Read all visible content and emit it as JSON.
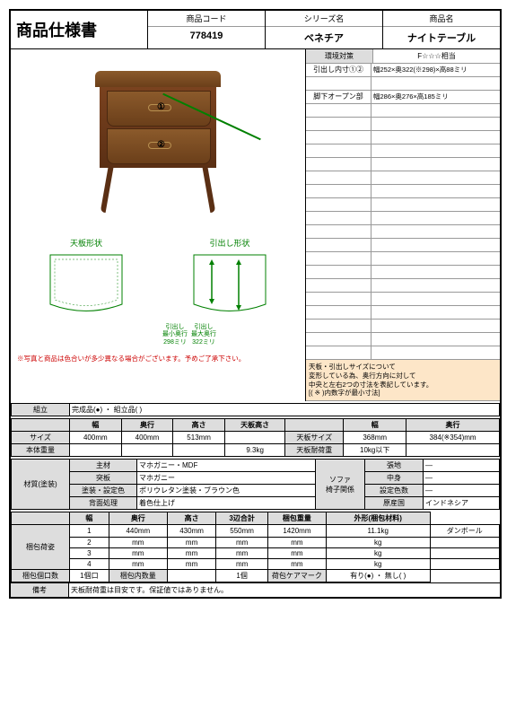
{
  "header": {
    "title": "商品仕様書",
    "code_label": "商品コード",
    "code": "778419",
    "series_label": "シリーズ名",
    "series": "ベネチア",
    "name_label": "商品名",
    "name": "ナイトテーブル"
  },
  "env": {
    "label": "環境対策",
    "value": "F☆☆☆相当"
  },
  "specs": [
    {
      "label": "引出し内寸①②",
      "value": "幅252×奥322(※298)×高88ミリ"
    },
    {
      "label": "",
      "value": ""
    },
    {
      "label": "脚下オープン部",
      "value": "幅286×奥276×高185ミリ"
    }
  ],
  "size_note": "天板・引出しサイズについて\n変形している為、奥行方向に対して\n中央と左右2つの寸法を表記しています。\n[( ※ )内数字が最小寸法]",
  "shapes": {
    "top_label": "天板形状",
    "drawer_label": "引出し形状",
    "min_depth": "引出し\n最小奥行\n298ミリ",
    "max_depth": "引出し\n最大奥行\n322ミリ"
  },
  "warning": "※写真と商品は色合いが多少異なる場合がございます。予めご了承下さい。",
  "assembly": {
    "label": "組立",
    "value": "完成品(●) ・ 組立品( )"
  },
  "size_table": {
    "headers": [
      "",
      "幅",
      "奥行",
      "高さ",
      "天板高さ",
      "",
      "幅",
      "奥行"
    ],
    "size_row": [
      "サイズ",
      "400mm",
      "400mm",
      "513mm",
      "",
      "天板サイズ",
      "368mm",
      "384(※354)mm"
    ],
    "weight_row": [
      "本体重量",
      "",
      "",
      "",
      "9.3kg",
      "天板耐荷重",
      "10kg以下",
      ""
    ]
  },
  "material": {
    "label": "材質(塗装)",
    "rows": [
      [
        "主材",
        "マホガニー・MDF"
      ],
      [
        "突板",
        "マホガニー"
      ],
      [
        "塗装・設定色",
        "ポリウレタン塗装・ブラウン色"
      ],
      [
        "背面処理",
        "着色仕上げ"
      ]
    ],
    "sofa_label": "ソファ\n椅子関係",
    "sofa_rows": [
      [
        "張地",
        "—"
      ],
      [
        "中身",
        "—"
      ],
      [
        "設定色数",
        "—"
      ],
      [
        "原産国",
        "インドネシア"
      ]
    ]
  },
  "packing": {
    "label": "梱包荷姿",
    "headers": [
      "",
      "幅",
      "奥行",
      "高さ",
      "3辺合計",
      "梱包重量",
      "外形(梱包材料)"
    ],
    "rows": [
      [
        "1",
        "440mm",
        "430mm",
        "550mm",
        "1420mm",
        "11.1kg",
        "ダンボール"
      ],
      [
        "2",
        "mm",
        "mm",
        "mm",
        "mm",
        "kg",
        ""
      ],
      [
        "3",
        "mm",
        "mm",
        "mm",
        "mm",
        "kg",
        ""
      ],
      [
        "4",
        "mm",
        "mm",
        "mm",
        "mm",
        "kg",
        ""
      ]
    ],
    "bottom": [
      "梱包個口数",
      "1個口",
      "梱包内数量",
      "",
      "1個",
      "荷包ケアマーク",
      "有り(●) ・ 無し( )"
    ]
  },
  "remarks": {
    "label": "備考",
    "value": "天板耐荷重は目安です。保証値ではありません。"
  }
}
